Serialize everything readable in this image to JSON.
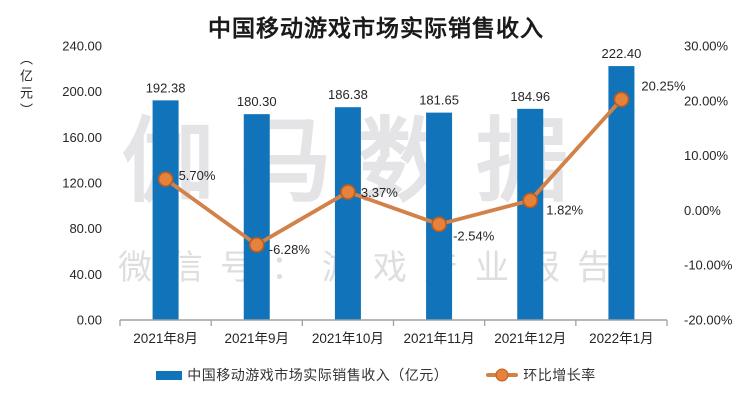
{
  "chart_data": {
    "type": "combo-bar-line",
    "title": "中国移动游戏市场实际销售收入",
    "y1_unit_label": "（亿元）",
    "categories": [
      "2021年8月",
      "2021年9月",
      "2021年10月",
      "2021年11月",
      "2021年12月",
      "2022年1月"
    ],
    "series": [
      {
        "name": "中国移动游戏市场实际销售收入（亿元）",
        "type": "bar",
        "axis": "y1",
        "values": [
          192.38,
          180.3,
          186.38,
          181.65,
          184.96,
          222.4
        ],
        "labels": [
          "192.38",
          "180.30",
          "186.38",
          "181.65",
          "184.96",
          "222.40"
        ],
        "color": "#1173b9"
      },
      {
        "name": "环比增长率",
        "type": "line",
        "axis": "y2",
        "values": [
          5.7,
          -6.28,
          3.37,
          -2.54,
          1.82,
          20.25
        ],
        "labels": [
          "5.70%",
          "-6.28%",
          "3.37%",
          "-2.54%",
          "1.82%",
          "20.25%"
        ],
        "color": "#d28248",
        "marker_fill": "#e5823b",
        "marker_stroke": "#bf5b1d"
      }
    ],
    "y1_axis": {
      "min": 0,
      "max": 240,
      "ticks": [
        "240.00",
        "200.00",
        "160.00",
        "120.00",
        "80.00",
        "40.00",
        "0.00"
      ]
    },
    "y2_axis": {
      "min": -20,
      "max": 30,
      "ticks": [
        "30.00%",
        "20.00%",
        "10.00%",
        "0.00%",
        "-10.00%",
        "-20.00%"
      ]
    },
    "legend_position": "bottom",
    "grid": false,
    "watermark_line1": "伽马数据",
    "watermark_line2": "微信号：游戏产业报告",
    "axis_color": "#a0a0a0",
    "text_color": "#262626"
  }
}
